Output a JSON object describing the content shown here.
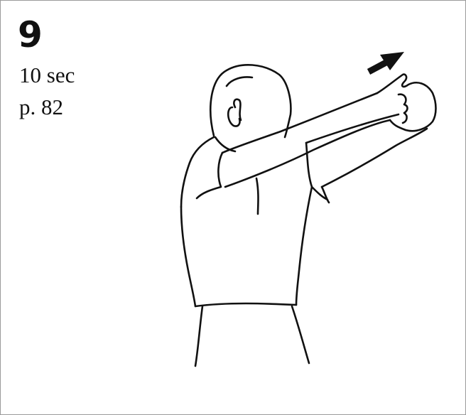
{
  "card": {
    "step_number": "9",
    "duration": "10 sec",
    "page_ref": "p. 82"
  },
  "illustration": {
    "subject": "stretch-figure",
    "direction": "arrow-up-right",
    "line_color": "#111111"
  }
}
